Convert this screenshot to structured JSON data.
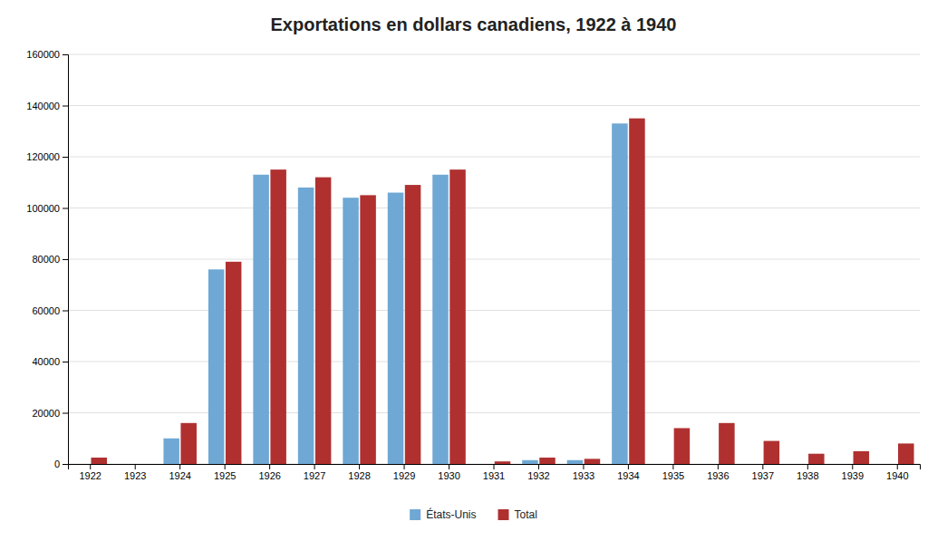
{
  "chart_data": {
    "type": "bar",
    "title": "Exportations en dollars canadiens, 1922 à 1940",
    "categories": [
      "1922",
      "1923",
      "1924",
      "1925",
      "1926",
      "1927",
      "1928",
      "1929",
      "1930",
      "1931",
      "1932",
      "1933",
      "1934",
      "1935",
      "1936",
      "1937",
      "1938",
      "1939",
      "1940"
    ],
    "series": [
      {
        "name": "États-Unis",
        "color": "#6fa8d4",
        "values": [
          0,
          0,
          10000,
          76000,
          113000,
          108000,
          104000,
          106000,
          113000,
          0,
          1500,
          1500,
          133000,
          0,
          0,
          0,
          0,
          0,
          0
        ]
      },
      {
        "name": "Total",
        "color": "#b03030",
        "values": [
          2500,
          0,
          16000,
          79000,
          115000,
          112000,
          105000,
          109000,
          115000,
          1000,
          2500,
          2000,
          135000,
          14000,
          16000,
          9000,
          4000,
          5000,
          8000
        ]
      }
    ],
    "ylim": [
      0,
      160000
    ],
    "yticks": [
      0,
      20000,
      40000,
      60000,
      80000,
      100000,
      120000,
      140000,
      160000
    ],
    "grid": true,
    "legend": "bottom"
  }
}
